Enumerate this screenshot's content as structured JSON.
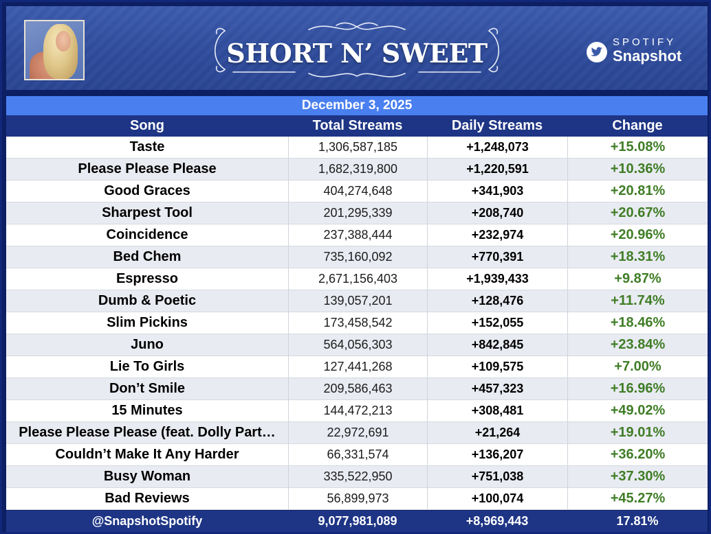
{
  "header": {
    "title": "SHORT N’ SWEET",
    "brand_small": "SPOTIFY",
    "brand_large": "Snapshot",
    "brand_icon": "twitter-bird-icon"
  },
  "date": "December 3, 2025",
  "columns": [
    "Song",
    "Total Streams",
    "Daily Streams",
    "Change"
  ],
  "rows": [
    {
      "song": "Taste",
      "total": "1,306,587,185",
      "daily": "+1,248,073",
      "change": "+15.08%"
    },
    {
      "song": "Please Please Please",
      "total": "1,682,319,800",
      "daily": "+1,220,591",
      "change": "+10.36%"
    },
    {
      "song": "Good Graces",
      "total": "404,274,648",
      "daily": "+341,903",
      "change": "+20.81%"
    },
    {
      "song": "Sharpest Tool",
      "total": "201,295,339",
      "daily": "+208,740",
      "change": "+20.67%"
    },
    {
      "song": "Coincidence",
      "total": "237,388,444",
      "daily": "+232,974",
      "change": "+20.96%"
    },
    {
      "song": "Bed Chem",
      "total": "735,160,092",
      "daily": "+770,391",
      "change": "+18.31%"
    },
    {
      "song": "Espresso",
      "total": "2,671,156,403",
      "daily": "+1,939,433",
      "change": "+9.87%"
    },
    {
      "song": "Dumb & Poetic",
      "total": "139,057,201",
      "daily": "+128,476",
      "change": "+11.74%"
    },
    {
      "song": "Slim Pickins",
      "total": "173,458,542",
      "daily": "+152,055",
      "change": "+18.46%"
    },
    {
      "song": "Juno",
      "total": "564,056,303",
      "daily": "+842,845",
      "change": "+23.84%"
    },
    {
      "song": "Lie To Girls",
      "total": "127,441,268",
      "daily": "+109,575",
      "change": "+7.00%"
    },
    {
      "song": "Don’t Smile",
      "total": "209,586,463",
      "daily": "+457,323",
      "change": "+16.96%"
    },
    {
      "song": "15 Minutes",
      "total": "144,472,213",
      "daily": "+308,481",
      "change": "+49.02%"
    },
    {
      "song": "Please Please Please (feat. Dolly Part…",
      "total": "22,972,691",
      "daily": "+21,264",
      "change": "+19.01%"
    },
    {
      "song": "Couldn’t Make It Any Harder",
      "total": "66,331,574",
      "daily": "+136,207",
      "change": "+36.20%"
    },
    {
      "song": "Busy Woman",
      "total": "335,522,950",
      "daily": "+751,038",
      "change": "+37.30%"
    },
    {
      "song": "Bad Reviews",
      "total": "56,899,973",
      "daily": "+100,074",
      "change": "+45.27%"
    }
  ],
  "footer": {
    "handle": "@SnapshotSpotify",
    "total": "9,077,981,089",
    "daily": "+8,969,443",
    "change": "17.81%"
  },
  "colors": {
    "header_bg": "#2f4c9c",
    "date_bar": "#4a7ff0",
    "table_header": "#1e3585",
    "positive": "#3f7d26",
    "row_alt": "#e9ebf2"
  }
}
